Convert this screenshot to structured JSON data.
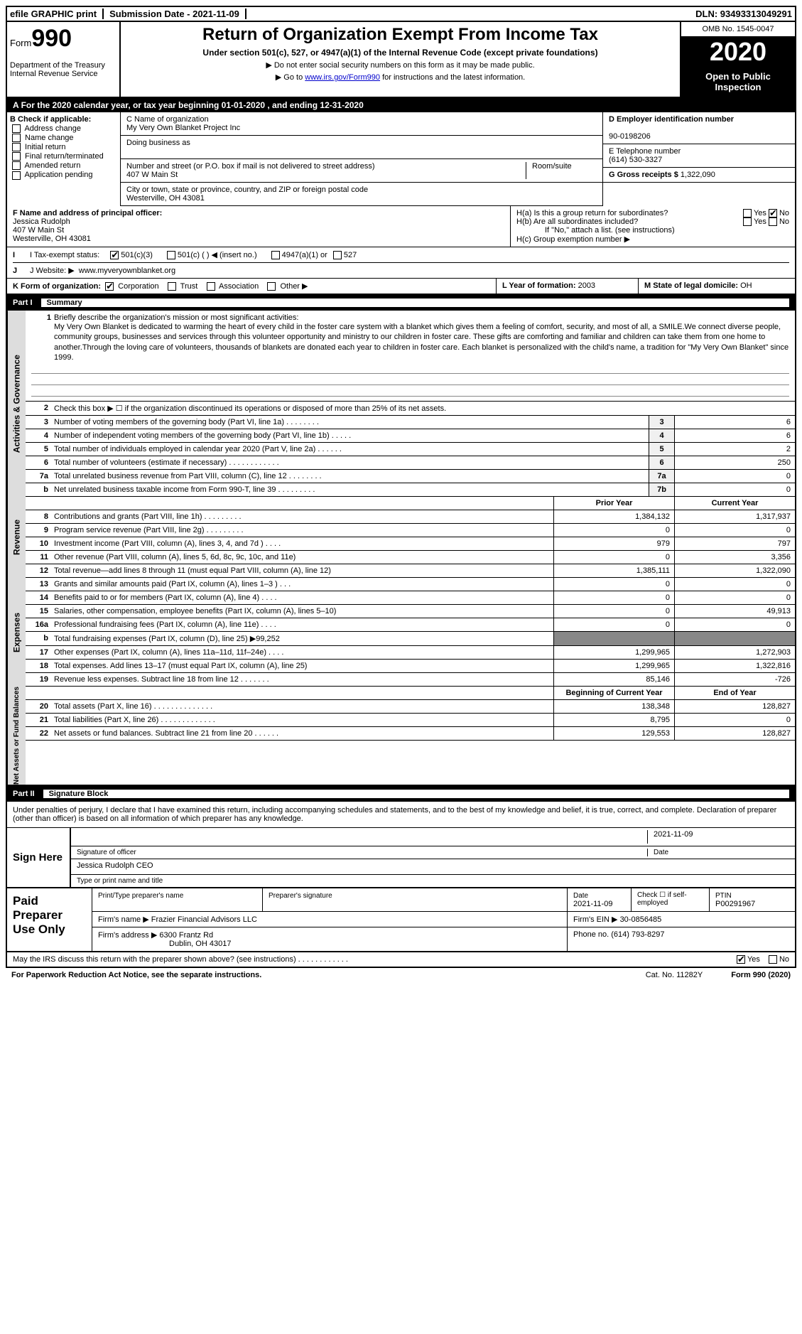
{
  "top": {
    "efile": "efile GRAPHIC print",
    "submission": "Submission Date - 2021-11-09",
    "dln": "DLN: 93493313049291"
  },
  "header": {
    "form_word": "Form",
    "form_num": "990",
    "dept": "Department of the Treasury\nInternal Revenue Service",
    "title": "Return of Organization Exempt From Income Tax",
    "subtitle": "Under section 501(c), 527, or 4947(a)(1) of the Internal Revenue Code (except private foundations)",
    "instr1": "▶ Do not enter social security numbers on this form as it may be made public.",
    "instr2_pre": "▶ Go to ",
    "instr2_link": "www.irs.gov/Form990",
    "instr2_post": " for instructions and the latest information.",
    "omb": "OMB No. 1545-0047",
    "year": "2020",
    "open": "Open to Public Inspection"
  },
  "tax_year": "For the 2020 calendar year, or tax year beginning 01-01-2020   , and ending 12-31-2020",
  "boxB": {
    "label": "B Check if applicable:",
    "items": [
      "Address change",
      "Name change",
      "Initial return",
      "Final return/terminated",
      "Amended return",
      "Application pending"
    ]
  },
  "boxC": {
    "name_lbl": "C Name of organization",
    "name": "My Very Own Blanket Project Inc",
    "dba_lbl": "Doing business as",
    "dba": "",
    "addr_lbl": "Number and street (or P.O. box if mail is not delivered to street address)",
    "addr": "407 W Main St",
    "room_lbl": "Room/suite",
    "city_lbl": "City or town, state or province, country, and ZIP or foreign postal code",
    "city": "Westerville, OH  43081"
  },
  "boxD": {
    "ein_lbl": "D Employer identification number",
    "ein": "90-0198206",
    "phone_lbl": "E Telephone number",
    "phone": "(614) 530-3327",
    "gross_lbl": "G Gross receipts $",
    "gross": "1,322,090"
  },
  "boxF": {
    "lbl": "F  Name and address of principal officer:",
    "name": "Jessica Rudolph",
    "addr1": "407 W Main St",
    "addr2": "Westerville, OH  43081"
  },
  "boxH": {
    "ha": "H(a)  Is this a group return for subordinates?",
    "hb": "H(b)  Are all subordinates included?",
    "hb_note": "If \"No,\" attach a list. (see instructions)",
    "hc": "H(c)  Group exemption number ▶",
    "yes": "Yes",
    "no": "No"
  },
  "boxI": {
    "lbl": "I  Tax-exempt status:",
    "opt1": "501(c)(3)",
    "opt2": "501(c) (  ) ◀ (insert no.)",
    "opt3": "4947(a)(1) or",
    "opt4": "527"
  },
  "boxJ": {
    "lbl": "J  Website: ▶",
    "val": "www.myveryownblanket.org"
  },
  "boxK": {
    "lbl": "K Form of organization:",
    "opts": [
      "Corporation",
      "Trust",
      "Association",
      "Other ▶"
    ]
  },
  "boxL": {
    "lbl": "L Year of formation:",
    "val": "2003"
  },
  "boxM": {
    "lbl": "M State of legal domicile:",
    "val": "OH"
  },
  "part1": {
    "label": "Part I",
    "title": "Summary"
  },
  "mission": {
    "lbl": "Briefly describe the organization's mission or most significant activities:",
    "text": "My Very Own Blanket is dedicated to warming the heart of every child in the foster care system with a blanket which gives them a feeling of comfort, security, and most of all, a SMILE.We connect diverse people, community groups, businesses and services through this volunteer opportunity and ministry to our children in foster care. These gifts are comforting and familiar and children can take them from one home to another.Through the loving care of volunteers, thousands of blankets are donated each year to children in foster care. Each blanket is personalized with the child's name, a tradition for \"My Very Own Blanket\" since 1999."
  },
  "side_labels": {
    "gov": "Activities & Governance",
    "rev": "Revenue",
    "exp": "Expenses",
    "net": "Net Assets or Fund Balances"
  },
  "lines_gov": [
    {
      "n": "2",
      "d": "Check this box ▶ ☐  if the organization discontinued its operations or disposed of more than 25% of its net assets."
    },
    {
      "n": "3",
      "d": "Number of voting members of the governing body (Part VI, line 1a)   .   .   .   .   .   .   .   .",
      "b": "3",
      "v": "6"
    },
    {
      "n": "4",
      "d": "Number of independent voting members of the governing body (Part VI, line 1b)   .   .   .   .   .",
      "b": "4",
      "v": "6"
    },
    {
      "n": "5",
      "d": "Total number of individuals employed in calendar year 2020 (Part V, line 2a)   .   .   .   .   .   .",
      "b": "5",
      "v": "2"
    },
    {
      "n": "6",
      "d": "Total number of volunteers (estimate if necessary)   .   .   .   .   .   .   .   .   .   .   .   .",
      "b": "6",
      "v": "250"
    },
    {
      "n": "7a",
      "d": "Total unrelated business revenue from Part VIII, column (C), line 12   .   .   .   .   .   .   .   .",
      "b": "7a",
      "v": "0"
    },
    {
      "n": "b",
      "d": "Net unrelated business taxable income from Form 990-T, line 39   .   .   .   .   .   .   .   .   .",
      "b": "7b",
      "v": "0"
    }
  ],
  "col_hdrs": {
    "prior": "Prior Year",
    "current": "Current Year"
  },
  "lines_rev": [
    {
      "n": "8",
      "d": "Contributions and grants (Part VIII, line 1h)   .   .   .   .   .   .   .   .   .",
      "v1": "1,384,132",
      "v2": "1,317,937"
    },
    {
      "n": "9",
      "d": "Program service revenue (Part VIII, line 2g)   .   .   .   .   .   .   .   .   .",
      "v1": "0",
      "v2": "0"
    },
    {
      "n": "10",
      "d": "Investment income (Part VIII, column (A), lines 3, 4, and 7d )   .   .   .   .",
      "v1": "979",
      "v2": "797"
    },
    {
      "n": "11",
      "d": "Other revenue (Part VIII, column (A), lines 5, 6d, 8c, 9c, 10c, and 11e)",
      "v1": "0",
      "v2": "3,356"
    },
    {
      "n": "12",
      "d": "Total revenue—add lines 8 through 11 (must equal Part VIII, column (A), line 12)",
      "v1": "1,385,111",
      "v2": "1,322,090"
    }
  ],
  "lines_exp": [
    {
      "n": "13",
      "d": "Grants and similar amounts paid (Part IX, column (A), lines 1–3 )   .   .   .",
      "v1": "0",
      "v2": "0"
    },
    {
      "n": "14",
      "d": "Benefits paid to or for members (Part IX, column (A), line 4)   .   .   .   .",
      "v1": "0",
      "v2": "0"
    },
    {
      "n": "15",
      "d": "Salaries, other compensation, employee benefits (Part IX, column (A), lines 5–10)",
      "v1": "0",
      "v2": "49,913"
    },
    {
      "n": "16a",
      "d": "Professional fundraising fees (Part IX, column (A), line 11e)   .   .   .   .",
      "v1": "0",
      "v2": "0"
    },
    {
      "n": "b",
      "d": "Total fundraising expenses (Part IX, column (D), line 25) ▶99,252",
      "v1": "shaded",
      "v2": "shaded"
    },
    {
      "n": "17",
      "d": "Other expenses (Part IX, column (A), lines 11a–11d, 11f–24e)   .   .   .   .",
      "v1": "1,299,965",
      "v2": "1,272,903"
    },
    {
      "n": "18",
      "d": "Total expenses. Add lines 13–17 (must equal Part IX, column (A), line 25)",
      "v1": "1,299,965",
      "v2": "1,322,816"
    },
    {
      "n": "19",
      "d": "Revenue less expenses. Subtract line 18 from line 12   .   .   .   .   .   .   .",
      "v1": "85,146",
      "v2": "-726"
    }
  ],
  "col_hdrs2": {
    "begin": "Beginning of Current Year",
    "end": "End of Year"
  },
  "lines_net": [
    {
      "n": "20",
      "d": "Total assets (Part X, line 16)   .   .   .   .   .   .   .   .   .   .   .   .   .   .",
      "v1": "138,348",
      "v2": "128,827"
    },
    {
      "n": "21",
      "d": "Total liabilities (Part X, line 26)   .   .   .   .   .   .   .   .   .   .   .   .   .",
      "v1": "8,795",
      "v2": "0"
    },
    {
      "n": "22",
      "d": "Net assets or fund balances. Subtract line 21 from line 20   .   .   .   .   .   .",
      "v1": "129,553",
      "v2": "128,827"
    }
  ],
  "part2": {
    "label": "Part II",
    "title": "Signature Block"
  },
  "sig": {
    "declare": "Under penalties of perjury, I declare that I have examined this return, including accompanying schedules and statements, and to the best of my knowledge and belief, it is true, correct, and complete. Declaration of preparer (other than officer) is based on all information of which preparer has any knowledge.",
    "sign_here": "Sign Here",
    "sig_officer": "Signature of officer",
    "date": "Date",
    "sig_date": "2021-11-09",
    "name_title": "Jessica Rudolph CEO",
    "name_title_lbl": "Type or print name and title"
  },
  "prep": {
    "label": "Paid Preparer Use Only",
    "name_lbl": "Print/Type preparer's name",
    "sig_lbl": "Preparer's signature",
    "date_lbl": "Date",
    "date": "2021-11-09",
    "check_lbl": "Check ☐ if self-employed",
    "ptin_lbl": "PTIN",
    "ptin": "P00291967",
    "firm_name_lbl": "Firm's name    ▶",
    "firm_name": "Frazier Financial Advisors LLC",
    "firm_ein_lbl": "Firm's EIN ▶",
    "firm_ein": "30-0856485",
    "firm_addr_lbl": "Firm's address ▶",
    "firm_addr1": "6300 Frantz Rd",
    "firm_addr2": "Dublin, OH  43017",
    "phone_lbl": "Phone no.",
    "phone": "(614) 793-8297"
  },
  "discuss": {
    "text": "May the IRS discuss this return with the preparer shown above? (see instructions)   .   .   .   .   .   .   .   .   .   .   .   .",
    "yes": "Yes",
    "no": "No"
  },
  "footer": {
    "paperwork": "For Paperwork Reduction Act Notice, see the separate instructions.",
    "cat": "Cat. No. 11282Y",
    "form": "Form 990 (2020)"
  }
}
